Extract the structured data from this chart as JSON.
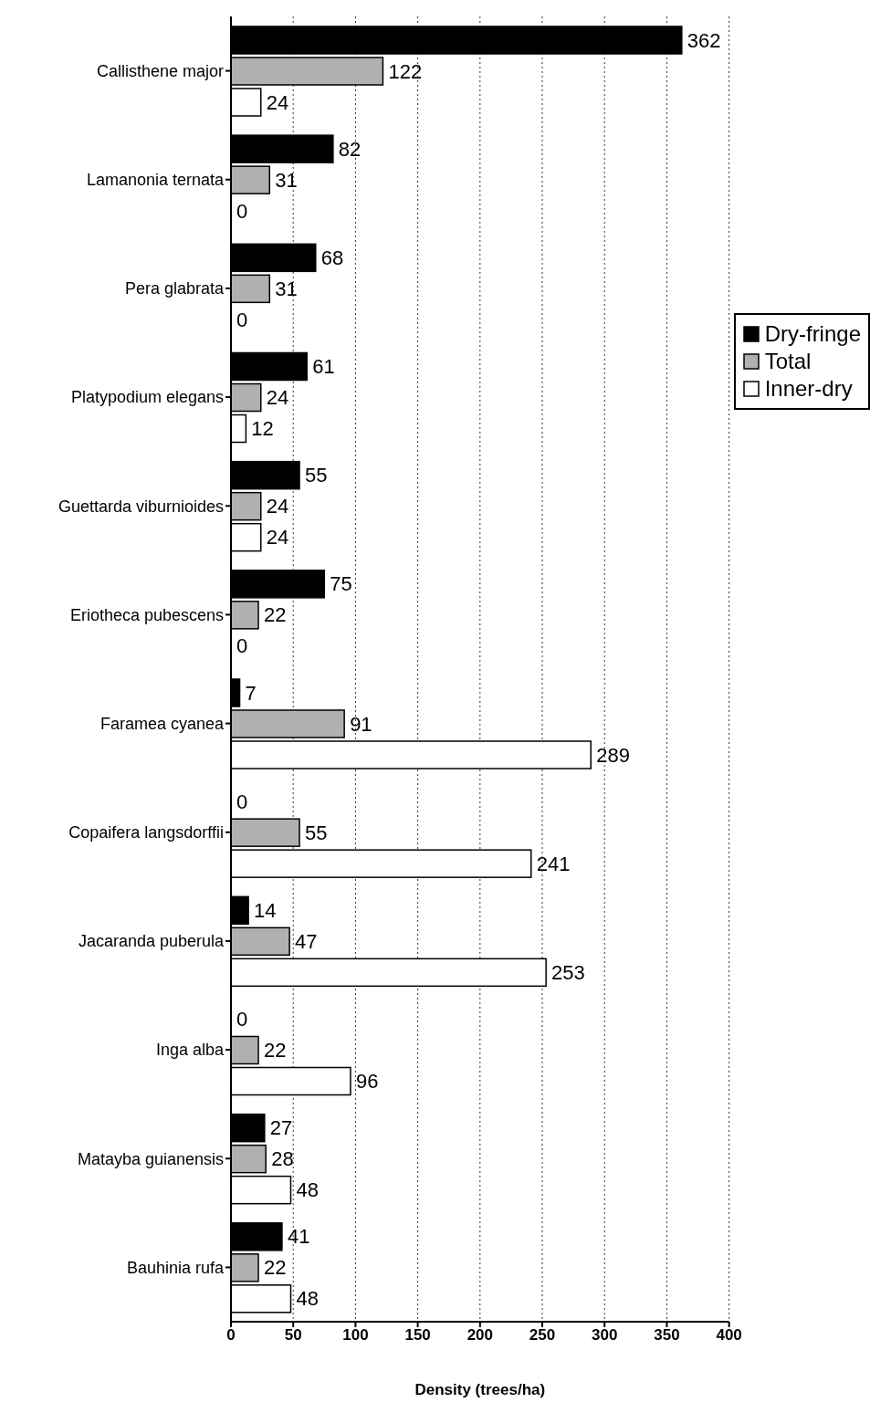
{
  "chart_data": {
    "type": "bar",
    "orientation": "horizontal",
    "xlabel": "Density (trees/ha)",
    "categories": [
      "Callisthene major",
      "Lamanonia ternata",
      "Pera glabrata",
      "Platypodium elegans",
      "Guettarda viburnioides",
      "Eriotheca pubescens",
      "Faramea cyanea",
      "Copaifera langsdorffii",
      "Jacaranda puberula",
      "Inga alba",
      "Matayba guianensis",
      "Bauhinia rufa"
    ],
    "series": [
      {
        "name": "Dry-fringe",
        "color": "#000000",
        "values": [
          362,
          82,
          68,
          61,
          55,
          75,
          7,
          0,
          14,
          0,
          27,
          41
        ]
      },
      {
        "name": "Total",
        "color": "#b0b0b0",
        "values": [
          122,
          31,
          31,
          24,
          24,
          22,
          91,
          55,
          47,
          22,
          28,
          22
        ]
      },
      {
        "name": "Inner-dry",
        "color": "#ffffff",
        "values": [
          24,
          0,
          0,
          12,
          24,
          0,
          289,
          241,
          253,
          96,
          48,
          48
        ]
      }
    ],
    "xlim": [
      0,
      400
    ],
    "xticks": [
      0,
      50,
      100,
      150,
      200,
      250,
      300,
      350,
      400
    ],
    "grid": "x",
    "legend": "right",
    "data_labels": true
  }
}
